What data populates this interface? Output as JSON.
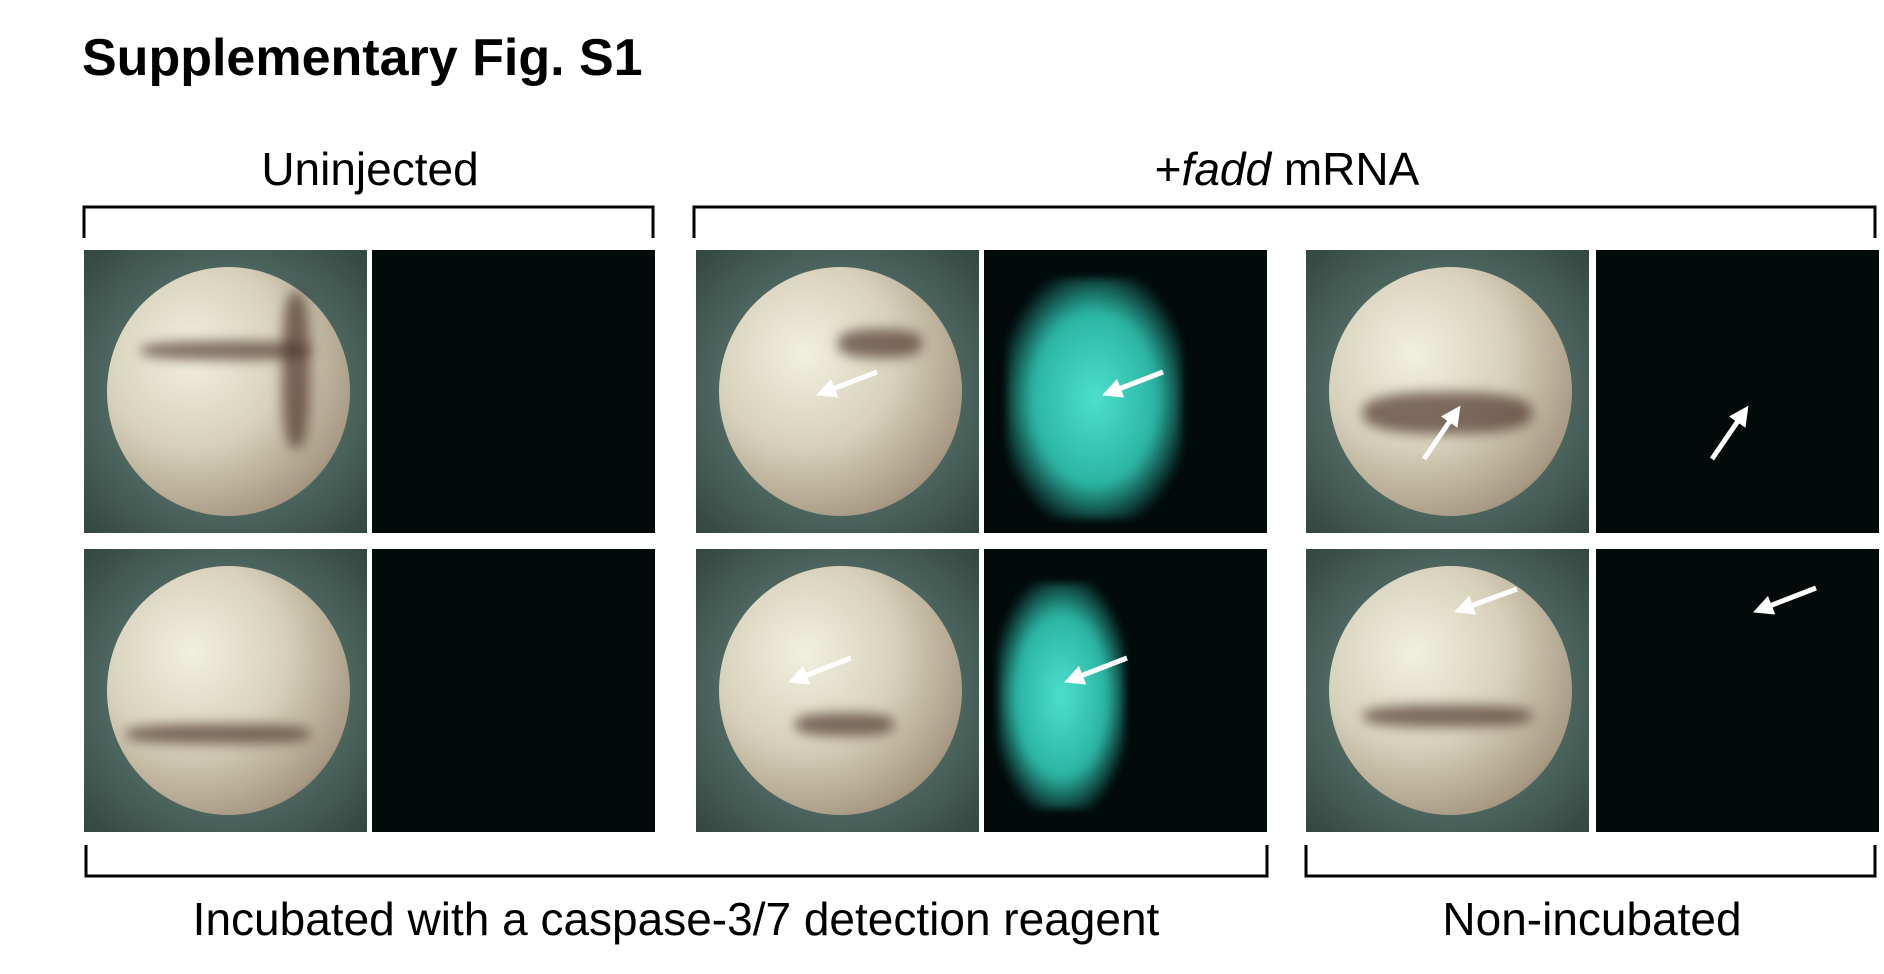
{
  "title": "Supplementary Fig. S1",
  "top_labels": {
    "uninjected": "Uninjected",
    "fadd_prefix": "+",
    "fadd_gene": "fadd",
    "fadd_suffix": " mRNA"
  },
  "bottom_labels": {
    "incubated": "Incubated with a caspase-3/7 detection reagent",
    "non_incubated": "Non-incubated"
  },
  "colors": {
    "fluorescence": "#3fd6c2",
    "background_dark": "#020a0a"
  }
}
